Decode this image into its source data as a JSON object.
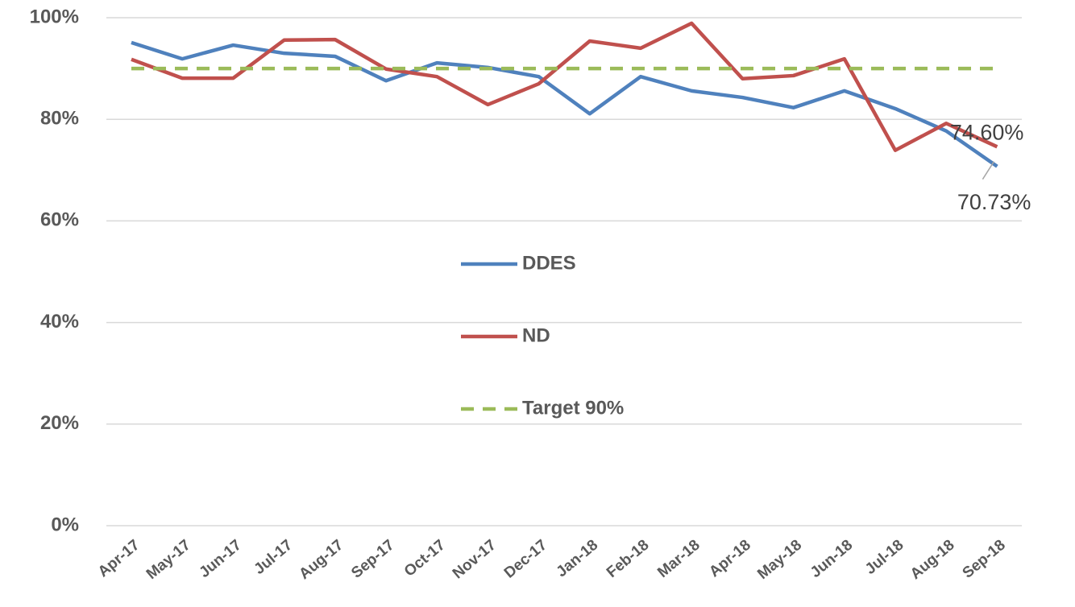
{
  "chart_data": {
    "type": "line",
    "categories": [
      "Apr-17",
      "May-17",
      "Jun-17",
      "Jul-17",
      "Aug-17",
      "Sep-17",
      "Oct-17",
      "Nov-17",
      "Dec-17",
      "Jan-18",
      "Feb-18",
      "Mar-18",
      "Apr-18",
      "May-18",
      "Jun-18",
      "Jul-18",
      "Aug-18",
      "Sep-18"
    ],
    "series": [
      {
        "name": "DDES",
        "color": "#4f81bd",
        "dashed": false,
        "values": [
          95.1,
          91.9,
          94.6,
          93.0,
          92.4,
          87.6,
          91.1,
          90.2,
          88.4,
          81.1,
          88.4,
          85.6,
          84.3,
          82.3,
          85.6,
          82.1,
          77.7,
          70.73
        ],
        "value_labels": [
          null,
          null,
          null,
          null,
          null,
          null,
          null,
          null,
          null,
          null,
          null,
          null,
          null,
          null,
          null,
          null,
          null,
          "70.73%"
        ]
      },
      {
        "name": "ND",
        "color": "#c0504d",
        "dashed": false,
        "values": [
          91.8,
          88.1,
          88.1,
          95.6,
          95.7,
          89.9,
          88.4,
          82.9,
          87.0,
          95.4,
          94.0,
          98.9,
          88.0,
          88.6,
          91.9,
          73.9,
          79.2,
          74.6
        ],
        "value_labels": [
          null,
          null,
          null,
          null,
          null,
          null,
          null,
          null,
          null,
          null,
          null,
          null,
          null,
          null,
          null,
          null,
          null,
          "74.60%"
        ]
      },
      {
        "name": "Target 90%",
        "color": "#9bbb59",
        "dashed": true,
        "values": [
          90,
          90,
          90,
          90,
          90,
          90,
          90,
          90,
          90,
          90,
          90,
          90,
          90,
          90,
          90,
          90,
          90,
          90
        ]
      }
    ],
    "ylim": [
      0,
      100
    ],
    "yticks": [
      {
        "value": 0,
        "label": "0%"
      },
      {
        "value": 20,
        "label": "20%"
      },
      {
        "value": 40,
        "label": "40%"
      },
      {
        "value": 60,
        "label": "60%"
      },
      {
        "value": 80,
        "label": "80%"
      },
      {
        "value": 100,
        "label": "100%"
      }
    ],
    "grid": true,
    "legend": "center"
  }
}
